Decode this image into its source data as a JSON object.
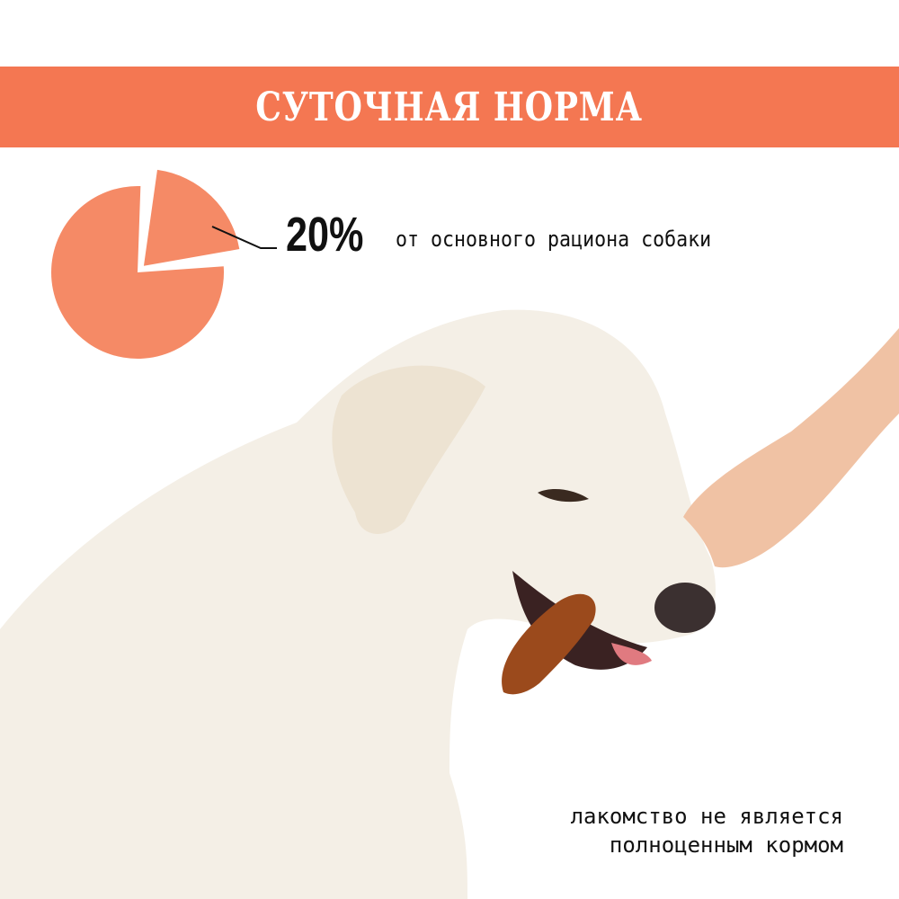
{
  "header": {
    "title": "СУТОЧНАЯ НОРМА"
  },
  "colors": {
    "accent": "#f47752",
    "pie": "#f58a66"
  },
  "chart_data": {
    "type": "pie",
    "values": [
      20,
      80
    ],
    "highlighted_slice": 20
  },
  "stat": {
    "value": "20%",
    "description": "от основного рациона собаки"
  },
  "note": {
    "line1": "лакомство не является",
    "line2": "полноценным кормом"
  },
  "photo": {
    "subject": "white dog chewing treat from hand"
  }
}
